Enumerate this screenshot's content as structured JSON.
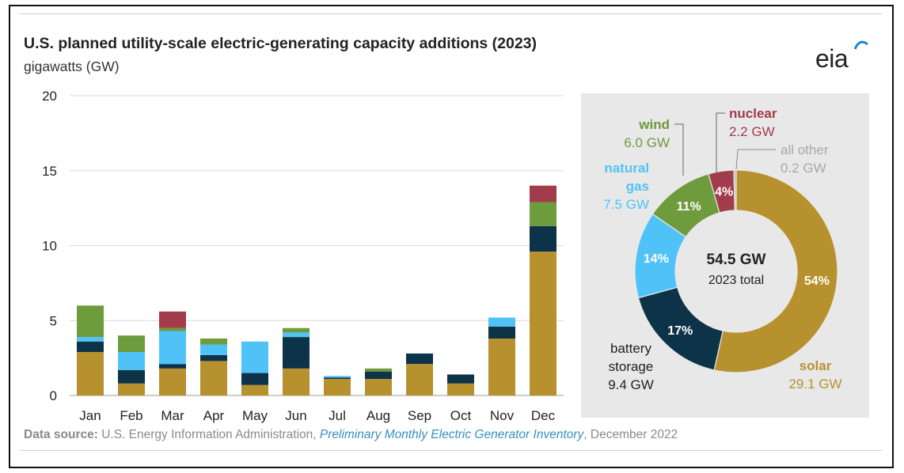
{
  "header": {
    "title": "U.S. planned utility-scale electric-generating capacity additions (2023)",
    "units": "gigawatts (GW)",
    "logo_text": "eia"
  },
  "footer": {
    "source_label": "Data source:",
    "source_org": "U.S. Energy Information Administration,",
    "source_pub": "Preliminary Monthly Electric Generator Inventory",
    "source_date": ", December 2022"
  },
  "chart_data": [
    {
      "type": "bar",
      "stacked": true,
      "title": "U.S. planned utility-scale electric-generating capacity additions (2023)",
      "ylabel": "gigawatts (GW)",
      "ylim": [
        0,
        20
      ],
      "yticks": [
        0,
        5,
        10,
        15,
        20
      ],
      "grid": true,
      "categories": [
        "Jan",
        "Feb",
        "Mar",
        "Apr",
        "May",
        "Jun",
        "Jul",
        "Aug",
        "Sep",
        "Oct",
        "Nov",
        "Dec"
      ],
      "series": [
        {
          "key": "solar",
          "color": "#b8912f",
          "values": [
            2.9,
            0.8,
            1.8,
            2.3,
            0.7,
            1.8,
            1.1,
            1.1,
            2.1,
            0.8,
            3.8,
            9.6
          ]
        },
        {
          "key": "battery",
          "color": "#0d3349",
          "values": [
            0.7,
            0.9,
            0.3,
            0.4,
            0.8,
            2.1,
            0.1,
            0.5,
            0.7,
            0.6,
            0.8,
            1.7
          ]
        },
        {
          "key": "gas",
          "color": "#4fc3f7",
          "values": [
            0.3,
            1.2,
            2.2,
            0.7,
            2.1,
            0.3,
            0.1,
            0.0,
            0.0,
            0.0,
            0.6,
            0.0
          ]
        },
        {
          "key": "wind",
          "color": "#6e9b3c",
          "values": [
            2.1,
            1.1,
            0.2,
            0.4,
            0.0,
            0.3,
            0.0,
            0.2,
            0.0,
            0.0,
            0.0,
            1.6
          ]
        },
        {
          "key": "nuclear",
          "color": "#a33c4a",
          "values": [
            0.0,
            0.0,
            1.1,
            0.0,
            0.0,
            0.0,
            0.0,
            0.0,
            0.0,
            0.0,
            0.0,
            1.1
          ]
        }
      ]
    },
    {
      "type": "pie",
      "donut": true,
      "center_total": "54.5 GW",
      "center_label": "2023 total",
      "slices": [
        {
          "name": "solar",
          "value": 29.1,
          "label": "29.1 GW",
          "percent_label": "54%",
          "color": "#b8912f"
        },
        {
          "name": "battery storage",
          "value": 9.4,
          "label": "9.4 GW",
          "percent_label": "17%",
          "color": "#0d3349"
        },
        {
          "name": "natural gas",
          "value": 7.5,
          "label": "7.5 GW",
          "percent_label": "14%",
          "color": "#4fc3f7"
        },
        {
          "name": "wind",
          "value": 6.0,
          "label": "6.0 GW",
          "percent_label": "11%",
          "color": "#6e9b3c"
        },
        {
          "name": "nuclear",
          "value": 2.2,
          "label": "2.2 GW",
          "percent_label": "4%",
          "color": "#a33c4a"
        },
        {
          "name": "all other",
          "value": 0.2,
          "label": "0.2 GW",
          "percent_label": "",
          "color": "#bdbdbd"
        }
      ]
    }
  ]
}
